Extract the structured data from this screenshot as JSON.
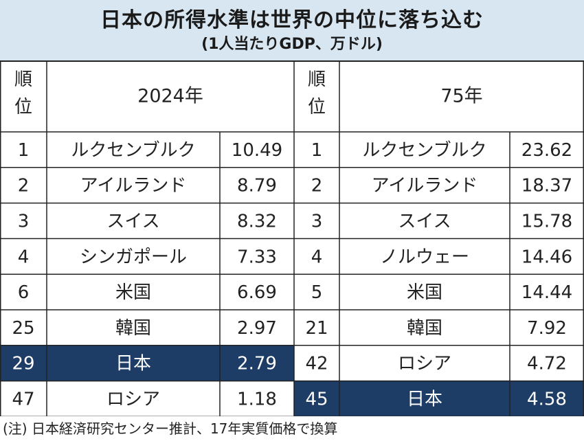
{
  "title": "日本の所得水準は世界の中位に落ち込む",
  "subtitle": "(1人当たりGDP、万ドル)",
  "note": "(注) 日本経済研究センター推計、17年実質価格で換算",
  "colors": {
    "header_bg": "#d8e6f1",
    "highlight": "#1d3d66",
    "highlight_text": "#ffffff",
    "grid": "#222222"
  },
  "chart_data": {
    "type": "table",
    "rank_header": "順位",
    "tables": [
      {
        "year_label": "2024年",
        "rows": [
          {
            "rank": "1",
            "country": "ルクセンブルク",
            "value": "10.49"
          },
          {
            "rank": "2",
            "country": "アイルランド",
            "value": "8.79"
          },
          {
            "rank": "3",
            "country": "スイス",
            "value": "8.32"
          },
          {
            "rank": "4",
            "country": "シンガポール",
            "value": "7.33"
          },
          {
            "rank": "6",
            "country": "米国",
            "value": "6.69"
          },
          {
            "rank": "25",
            "country": "韓国",
            "value": "2.97"
          },
          {
            "rank": "29",
            "country": "日本",
            "value": "2.79",
            "highlight": true
          },
          {
            "rank": "47",
            "country": "ロシア",
            "value": "1.18"
          }
        ]
      },
      {
        "year_label": "75年",
        "rows": [
          {
            "rank": "1",
            "country": "ルクセンブルク",
            "value": "23.62"
          },
          {
            "rank": "2",
            "country": "アイルランド",
            "value": "18.37"
          },
          {
            "rank": "3",
            "country": "スイス",
            "value": "15.78"
          },
          {
            "rank": "4",
            "country": "ノルウェー",
            "value": "14.46"
          },
          {
            "rank": "5",
            "country": "米国",
            "value": "14.44"
          },
          {
            "rank": "21",
            "country": "韓国",
            "value": "7.92"
          },
          {
            "rank": "42",
            "country": "ロシア",
            "value": "4.72"
          },
          {
            "rank": "45",
            "country": "日本",
            "value": "4.58",
            "highlight": true
          }
        ]
      }
    ]
  }
}
